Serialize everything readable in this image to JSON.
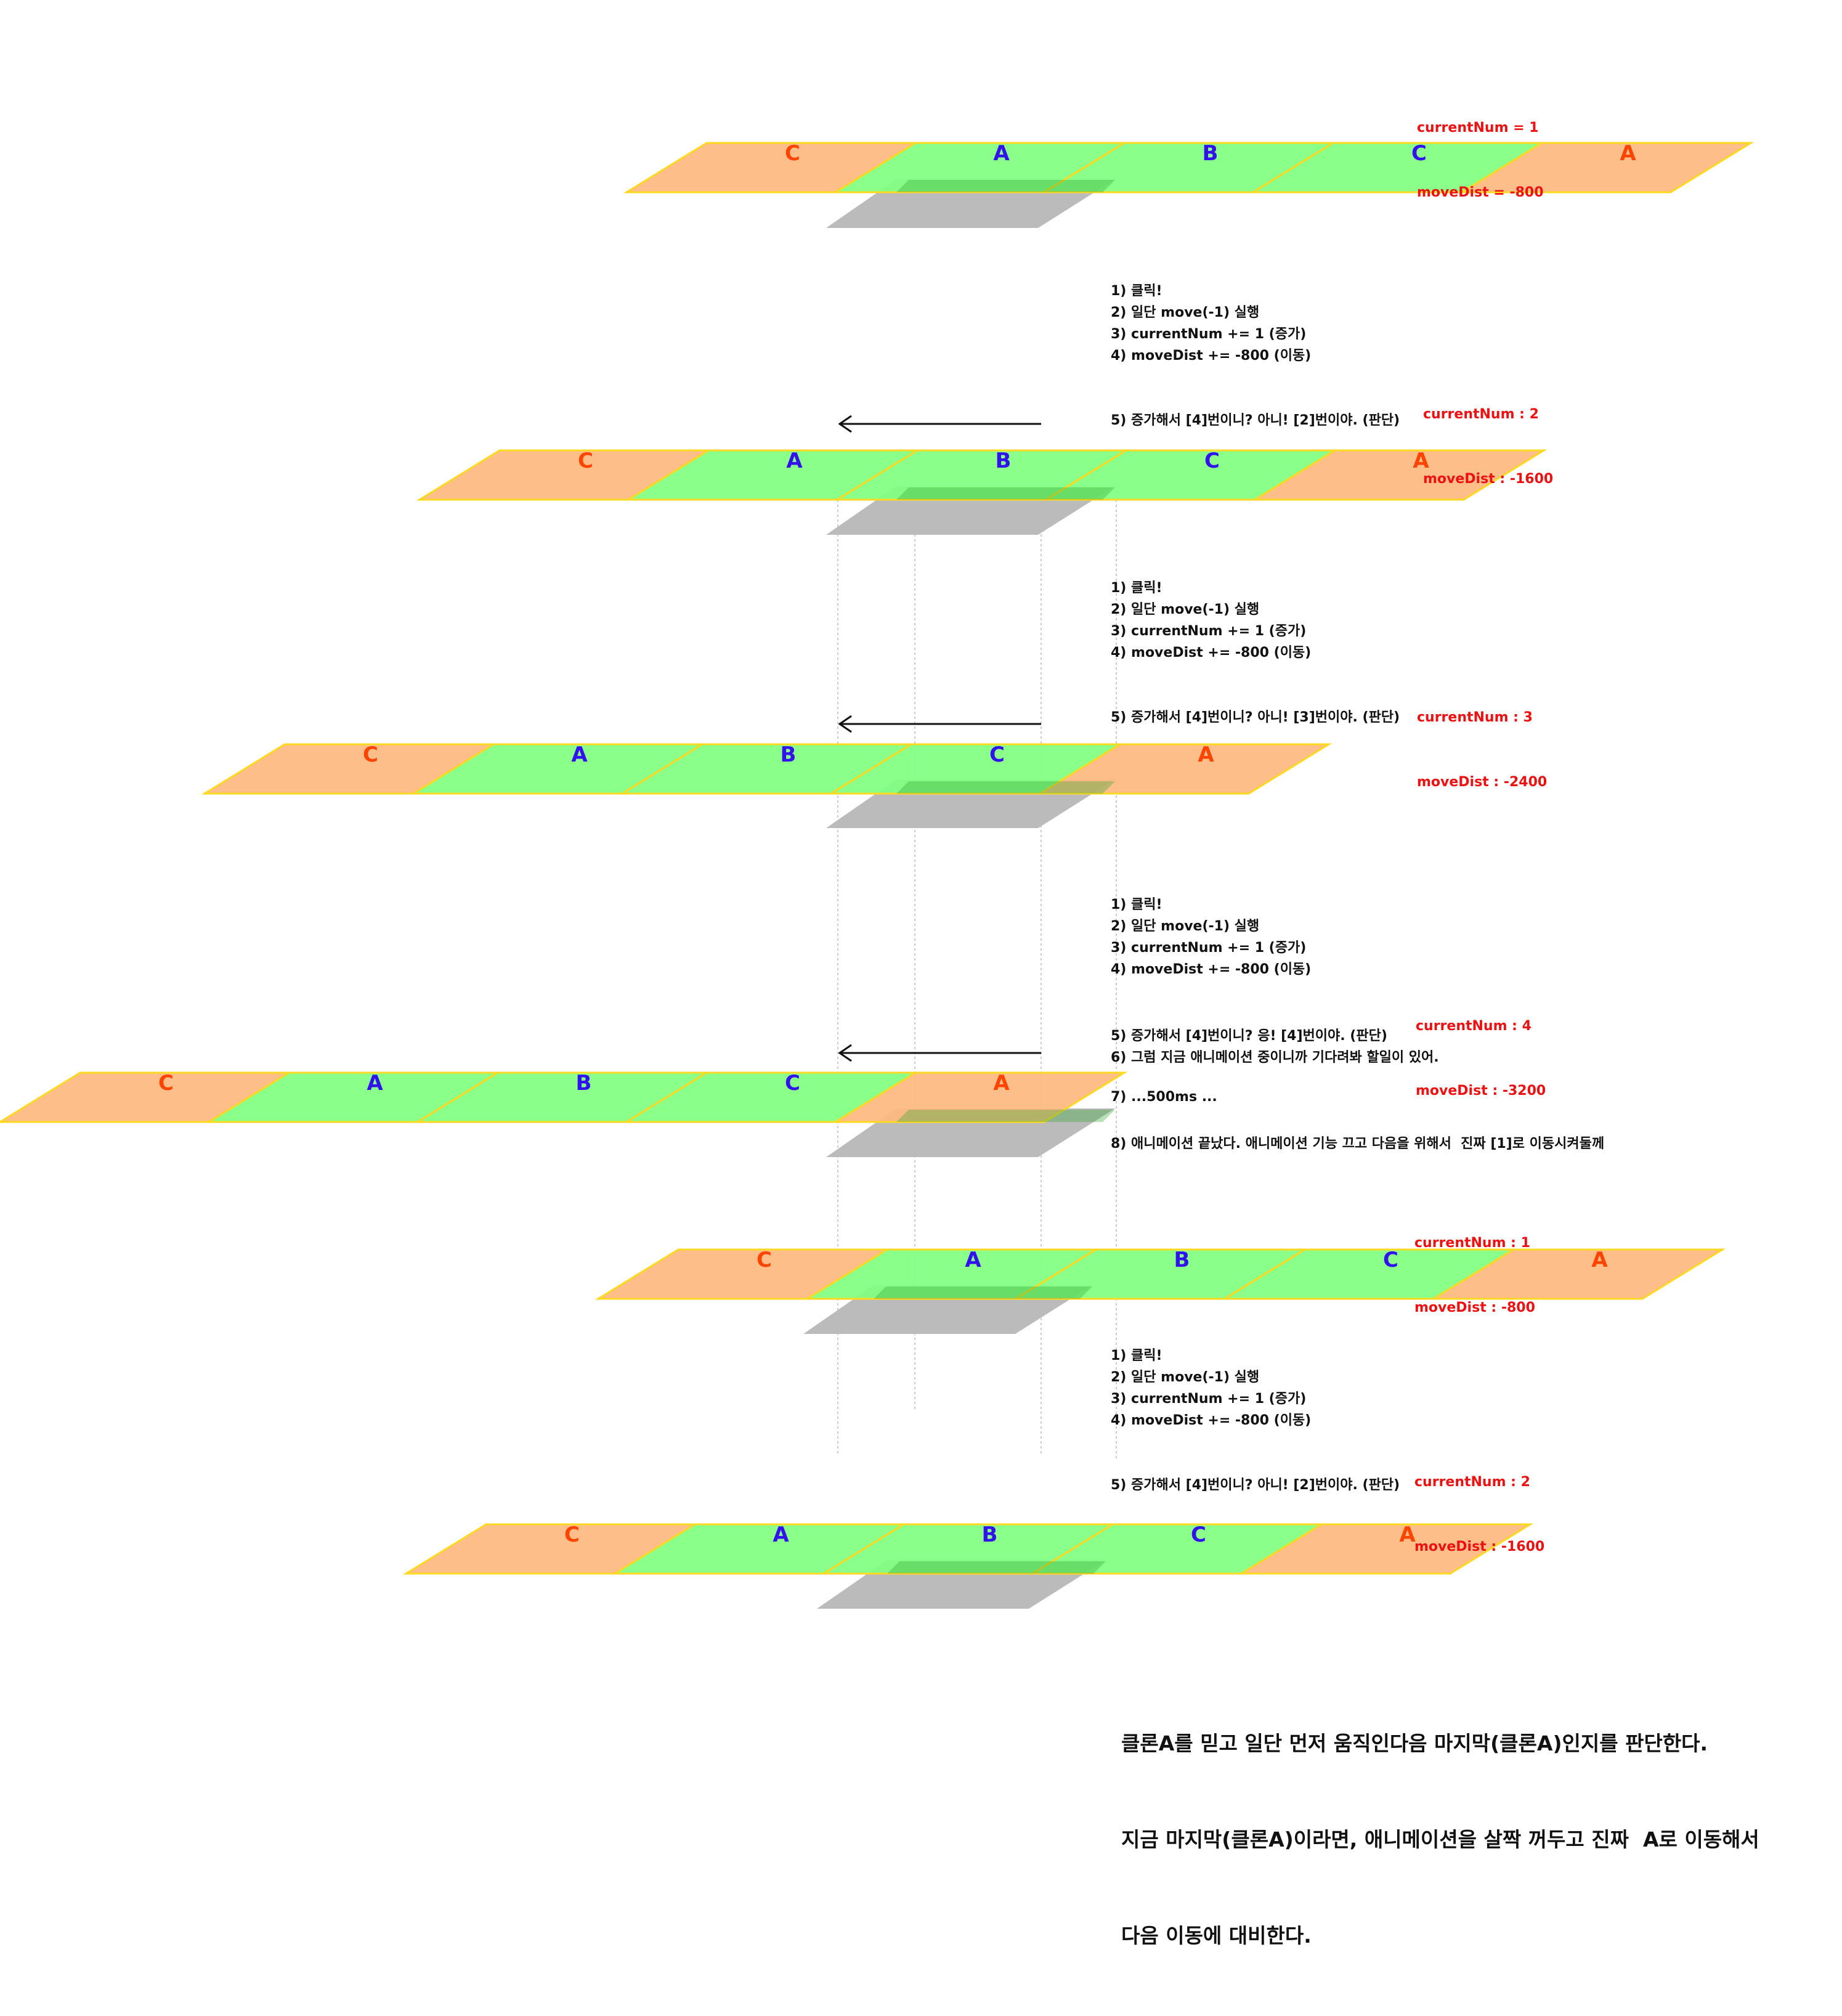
{
  "colors": {
    "clone_fill": "#fdb87f",
    "real_fill": "#80ff80",
    "border": "#ffd820",
    "clone_label": "#ff4400",
    "real_label": "#3311ee",
    "viewport": "#bbbbbb",
    "status_text": "#ee1111",
    "step_text": "#111111"
  },
  "rows": [
    {
      "tiles": [
        {
          "label": "C",
          "kind": "clone"
        },
        {
          "label": "A",
          "kind": "real"
        },
        {
          "label": "B",
          "kind": "real"
        },
        {
          "label": "C",
          "kind": "real"
        },
        {
          "label": "A",
          "kind": "clone"
        }
      ],
      "status": [
        "currentNum = 1",
        "moveDist = -800"
      ]
    },
    {
      "tiles": [
        {
          "label": "C",
          "kind": "clone"
        },
        {
          "label": "A",
          "kind": "real"
        },
        {
          "label": "B",
          "kind": "real"
        },
        {
          "label": "C",
          "kind": "real"
        },
        {
          "label": "A",
          "kind": "clone"
        }
      ],
      "status": [
        "currentNum : 2",
        "moveDist : -1600"
      ]
    },
    {
      "tiles": [
        {
          "label": "C",
          "kind": "clone"
        },
        {
          "label": "A",
          "kind": "real"
        },
        {
          "label": "B",
          "kind": "real"
        },
        {
          "label": "C",
          "kind": "real"
        },
        {
          "label": "A",
          "kind": "clone"
        }
      ],
      "status": [
        "currentNum : 3",
        "moveDist : -2400"
      ]
    },
    {
      "tiles": [
        {
          "label": "C",
          "kind": "clone"
        },
        {
          "label": "A",
          "kind": "real"
        },
        {
          "label": "B",
          "kind": "real"
        },
        {
          "label": "C",
          "kind": "real"
        },
        {
          "label": "A",
          "kind": "clone"
        }
      ],
      "status": [
        "currentNum : 4",
        "moveDist : -3200"
      ]
    },
    {
      "tiles": [
        {
          "label": "C",
          "kind": "clone"
        },
        {
          "label": "A",
          "kind": "real"
        },
        {
          "label": "B",
          "kind": "real"
        },
        {
          "label": "C",
          "kind": "real"
        },
        {
          "label": "A",
          "kind": "clone"
        }
      ],
      "status": [
        "currentNum : 1",
        "moveDist : -800"
      ]
    },
    {
      "tiles": [
        {
          "label": "C",
          "kind": "clone"
        },
        {
          "label": "A",
          "kind": "real"
        },
        {
          "label": "B",
          "kind": "real"
        },
        {
          "label": "C",
          "kind": "real"
        },
        {
          "label": "A",
          "kind": "clone"
        }
      ],
      "status": [
        "currentNum : 2",
        "moveDist : -1600"
      ]
    }
  ],
  "steps": [
    {
      "main": [
        "1) 클릭!",
        "2) 일단 move(-1) 실행",
        "3) currentNum += 1 (증가)",
        "4) moveDist += -800 (이동)"
      ],
      "extra": [
        "5) 증가해서 [4]번이니? 아니! [2]번이야. (판단)"
      ]
    },
    {
      "main": [
        "1) 클릭!",
        "2) 일단 move(-1) 실행",
        "3) currentNum += 1 (증가)",
        "4) moveDist += -800 (이동)"
      ],
      "extra": [
        "5) 증가해서 [4]번이니? 아니! [3]번이야. (판단)"
      ]
    },
    {
      "main": [
        "1) 클릭!",
        "2) 일단 move(-1) 실행",
        "3) currentNum += 1 (증가)",
        "4) moveDist += -800 (이동)"
      ],
      "extra": [
        "5) 증가해서 [4]번이니? 응! [4]번이야. (판단)",
        "6) 그럼 지금 애니메이션 중이니까 기다려봐 할일이 있어.",
        "7) ...500ms ...",
        "8) 애니메이션 끝났다. 애니메이션 기능 끄고 다음을 위해서  진짜 [1]로 이동시켜둘께"
      ]
    },
    {
      "main": [
        "1) 클릭!",
        "2) 일단 move(-1) 실행",
        "3) currentNum += 1 (증가)",
        "4) moveDist += -800 (이동)"
      ],
      "extra": [
        "5) 증가해서 [4]번이니? 아니! [2]번이야. (판단)"
      ]
    }
  ],
  "summary": [
    "클론A를 믿고 일단 먼저 움직인다음 마지막(클론A)인지를 판단한다.",
    "지금 마지막(클론A)이라면, 애니메이션을 살짝 꺼두고 진짜  A로 이동해서",
    "다음 이동에 대비한다."
  ]
}
